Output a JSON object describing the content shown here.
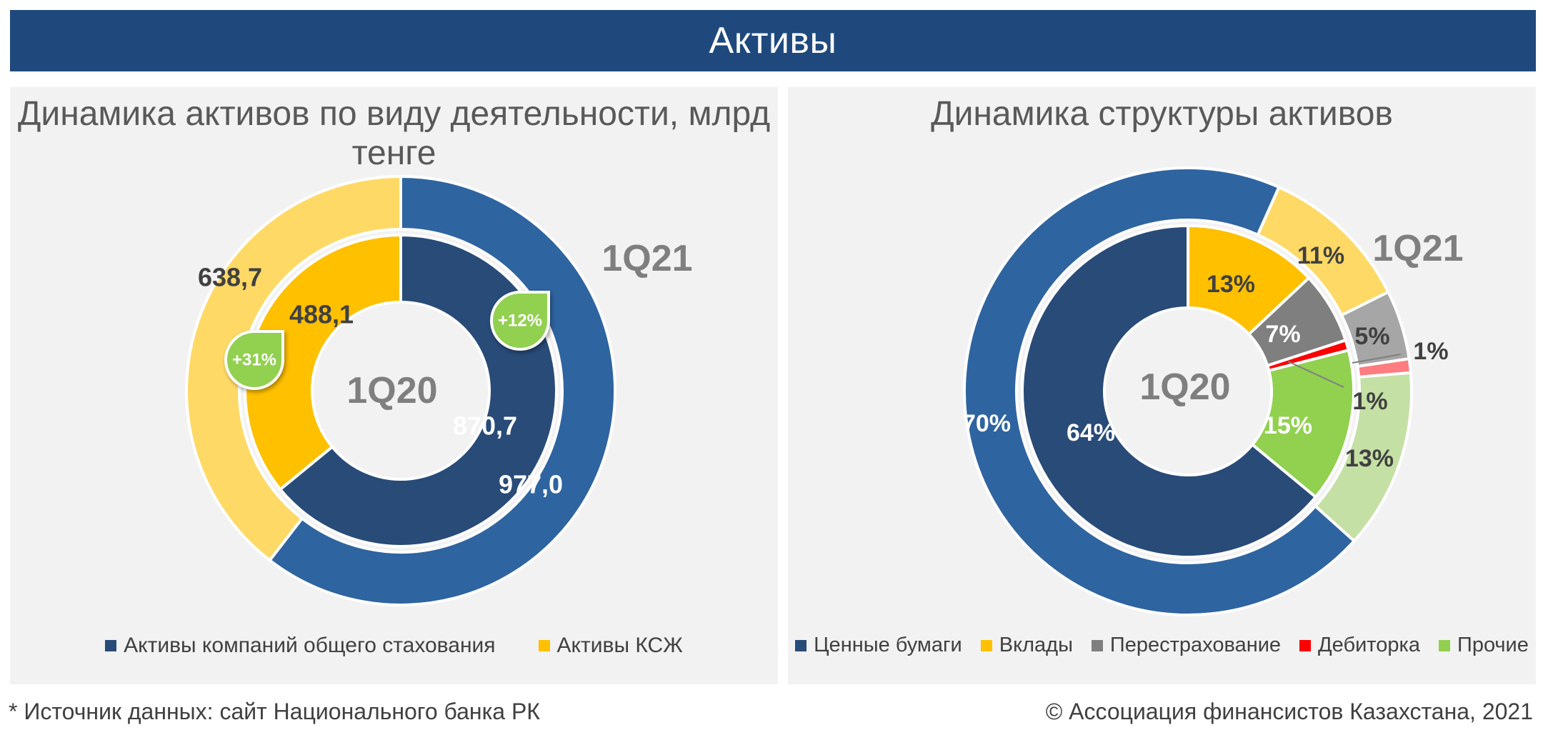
{
  "header": {
    "title": "Активы"
  },
  "footer": {
    "source": "* Источник данных: сайт Национального банка РК",
    "copyright": "© Ассоциация финансистов Казахстана, 2021"
  },
  "chart_data": [
    {
      "type": "donut",
      "title": "Динамика активов по виду деятельности, млрд тенге",
      "rings": [
        {
          "name": "1Q20",
          "values": [
            870.7,
            488.1
          ],
          "labels": [
            "870,7",
            "488,1"
          ]
        },
        {
          "name": "1Q21",
          "values": [
            977.0,
            638.7
          ],
          "labels": [
            "977,0",
            "638,7"
          ]
        }
      ],
      "series": [
        {
          "name": "Активы компаний общего стахования",
          "color": "#2e64a0",
          "inner_color": "#284b78"
        },
        {
          "name": "Активы КСЖ",
          "color": "#ffc000",
          "inner_color": "#ffc000",
          "outer_color": "#ffd966"
        }
      ],
      "growth": [
        {
          "series": "Активы компаний общего стахования",
          "label": "+12%"
        },
        {
          "series": "Активы КСЖ",
          "label": "+31%"
        }
      ],
      "legend": "bottom"
    },
    {
      "type": "donut",
      "title": "Динамика структуры активов",
      "categories": [
        "Ценные бумаги",
        "Вклады",
        "Перестрахование",
        "Дебиторка",
        "Прочие"
      ],
      "colors": [
        "#2e64a0",
        "#ffc000",
        "#7f7f7f",
        "#ff0000",
        "#92d050"
      ],
      "rings": [
        {
          "name": "1Q20",
          "values": [
            64,
            13,
            7,
            1,
            15
          ],
          "labels": [
            "64%",
            "13%",
            "7%",
            "1%",
            "15%"
          ]
        },
        {
          "name": "1Q21",
          "values": [
            70,
            11,
            5,
            1,
            13
          ],
          "labels": [
            "70%",
            "11%",
            "5%",
            "1%",
            "13%"
          ]
        }
      ],
      "legend": "bottom"
    }
  ]
}
